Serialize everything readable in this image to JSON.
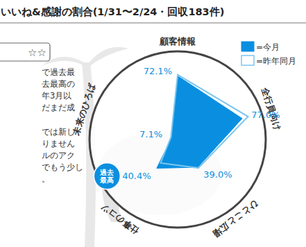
{
  "chart_data": {
    "type": "radar",
    "title": "いいね&感謝の割合(1/31〜2/24・回収183件)",
    "categories": [
      "顧客情報",
      "全行員向け",
      "ひとこと広場",
      "仕事のコツ",
      "未来のひろば"
    ],
    "series": [
      {
        "name": "=今月",
        "type": "area",
        "color": "#0a8fe0",
        "values": [
          72.1,
          77.0,
          39.0,
          40.4,
          7.1
        ],
        "value_labels": [
          "72.1%",
          "77.0%",
          "39.0%",
          "40.4%",
          "7.1%"
        ]
      },
      {
        "name": "=昨年同月",
        "type": "line",
        "color": "#7cc6ef",
        "values": [
          73.5,
          84,
          40,
          33,
          8
        ]
      }
    ],
    "ylim": [
      0,
      100
    ],
    "tick_labels": "x",
    "data_labels": true,
    "legend": "top-right",
    "annotations": [
      {
        "text": "過去最高",
        "category": "仕事のコツ"
      }
    ],
    "rating": "☆☆",
    "text_fragments": [
      "で過去最",
      "去最高の",
      "年3月以",
      "だまだ成",
      "では新し",
      "りません",
      "ルのアク",
      "でもう少し",
      "。"
    ]
  }
}
